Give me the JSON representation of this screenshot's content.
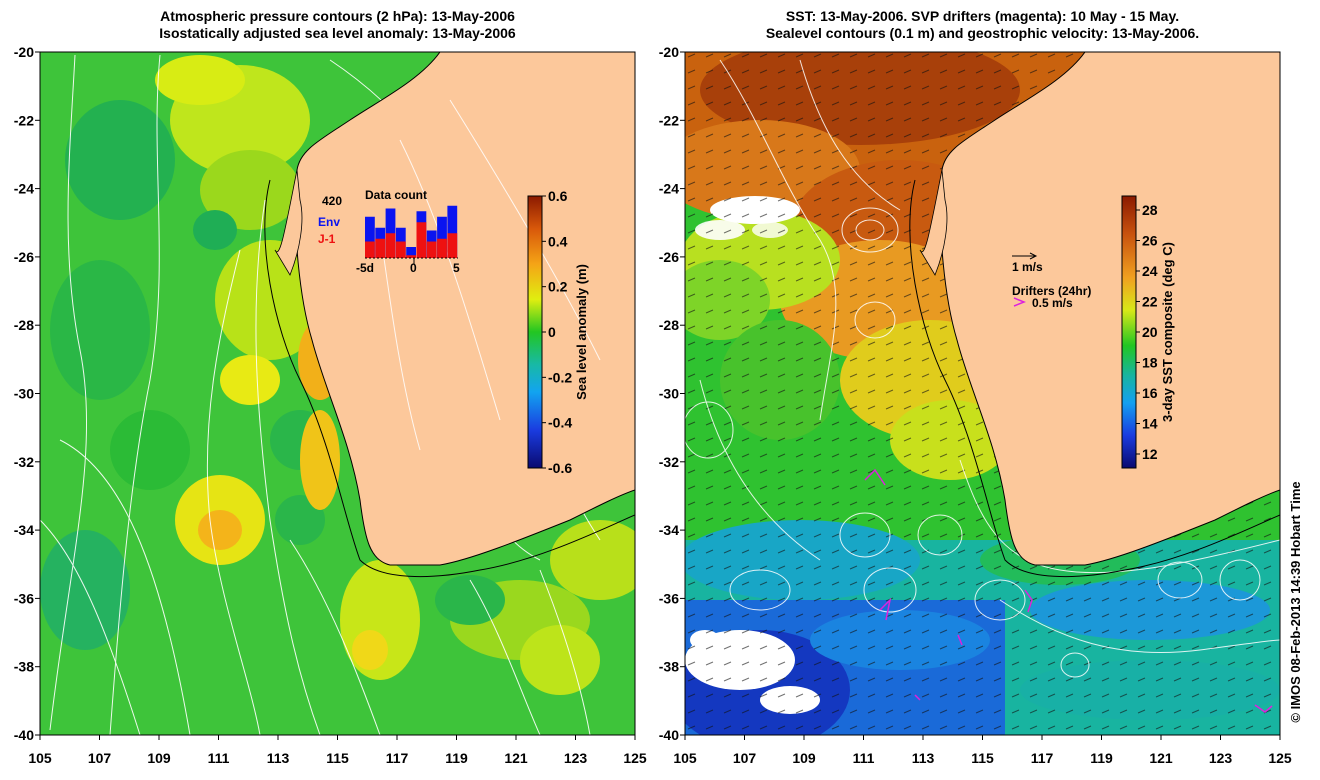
{
  "left_panel": {
    "title_line1": "Atmospheric pressure contours (2 hPa): 13-May-2006",
    "title_line2": "Isostatically adjusted sea level anomaly: 13-May-2006",
    "colorbar": {
      "label": "Sea level anomaly (m)",
      "ticks": [
        "0.6",
        "0.4",
        "0.2",
        "0",
        "-0.2",
        "-0.4",
        "-0.6"
      ]
    },
    "inset": {
      "title": "Data count",
      "max_label": "420",
      "env_label": "Env",
      "j1_label": "J-1",
      "x_labels": [
        "-5d",
        "0",
        "5"
      ],
      "env_color": "#0a14f0",
      "j1_color": "#ee1111",
      "env_counts": [
        0.75,
        0.55,
        0.9,
        0.55,
        0.2,
        0.85,
        0.5,
        0.75,
        0.95
      ],
      "j1_counts": [
        0.3,
        0.35,
        0.45,
        0.3,
        0.05,
        0.65,
        0.3,
        0.35,
        0.45
      ]
    }
  },
  "right_panel": {
    "title_line1": "SST: 13-May-2006. SVP drifters (magenta): 10 May - 15 May.",
    "title_line2": "Sealevel contours (0.1 m) and geostrophic velocity: 13-May-2006.",
    "colorbar": {
      "label": "3-day SST composite (deg C)",
      "ticks": [
        "28",
        "26",
        "24",
        "22",
        "20",
        "18",
        "16",
        "14",
        "12"
      ]
    },
    "velocity_legend": "1 m/s",
    "drifter_legend_title": "Drifters (24hr)",
    "drifter_legend_value": "0.5 m/s",
    "drifter_color": "#dd22dd"
  },
  "axes": {
    "x_ticks": [
      "105",
      "107",
      "109",
      "111",
      "113",
      "115",
      "117",
      "119",
      "121",
      "123",
      "125"
    ],
    "y_ticks": [
      "-20",
      "-22",
      "-24",
      "-26",
      "-28",
      "-30",
      "-32",
      "-34",
      "-36",
      "-38",
      "-40"
    ]
  },
  "land_color": "#fcc89b",
  "credit": "© IMOS 08-Feb-2013 14:39 Hobart Time"
}
